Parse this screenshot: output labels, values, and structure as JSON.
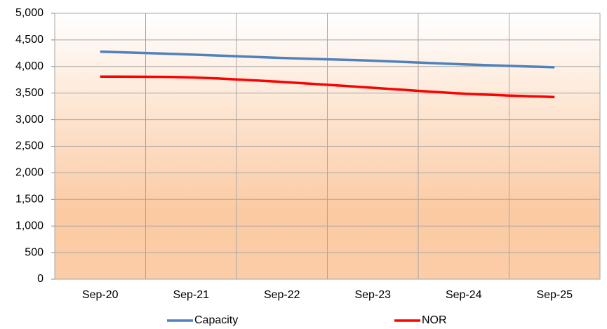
{
  "chart_data": {
    "type": "line",
    "categories": [
      "Sep-20",
      "Sep-21",
      "Sep-22",
      "Sep-23",
      "Sep-24",
      "Sep-25"
    ],
    "series": [
      {
        "name": "Capacity",
        "color": "#4f81bd",
        "values": [
          4280,
          4225,
          4160,
          4110,
          4040,
          3985
        ]
      },
      {
        "name": "NOR",
        "color": "#ff0000",
        "values": [
          3810,
          3795,
          3710,
          3600,
          3490,
          3425
        ]
      }
    ],
    "ylim": [
      0,
      5000
    ],
    "yticks": [
      0,
      500,
      {
        "value": 1000,
        "label": "1,000"
      },
      {
        "value": 1500,
        "label": "1,500"
      },
      {
        "value": 2000,
        "label": "2,000"
      },
      {
        "value": 2500,
        "label": "2,500"
      },
      {
        "value": 3000,
        "label": "3,000"
      },
      {
        "value": 3500,
        "label": "3,500"
      },
      {
        "value": 4000,
        "label": "4,000"
      },
      {
        "value": 4500,
        "label": "4,500"
      },
      {
        "value": 5000,
        "label": "5,000"
      }
    ],
    "grid": true,
    "legend": "bottom"
  }
}
